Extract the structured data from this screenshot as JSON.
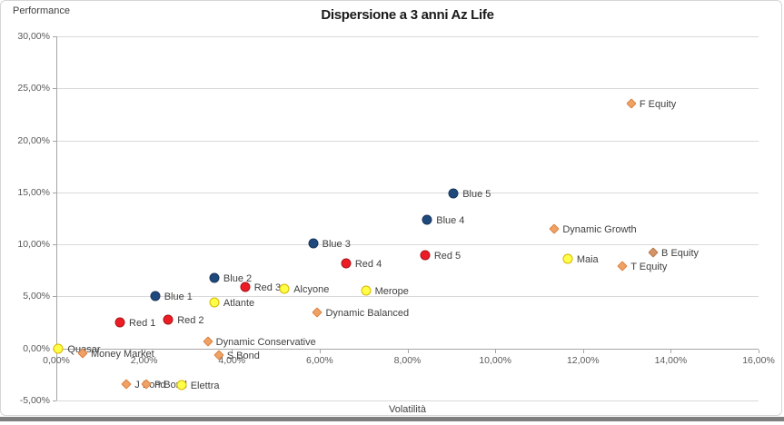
{
  "title": "Dispersione a 3 anni Az Life",
  "y_axis_title": "Performance",
  "x_axis_title": "Volatilità",
  "palette": {
    "blue": {
      "fill": "#1F497D",
      "border": "#17365D"
    },
    "red": {
      "fill": "#ED1C24",
      "border": "#A81419"
    },
    "yellow": {
      "fill": "#FFFF47",
      "border": "#D9B500"
    },
    "orange": {
      "fill": "#F0A265",
      "border": "#DB8244"
    },
    "tan": {
      "fill": "#D49465",
      "border": "#B87B4E"
    }
  },
  "chart_data": {
    "type": "scatter",
    "title": "Dispersione a 3 anni Az Life",
    "xlabel": "Volatilità",
    "ylabel": "Performance",
    "xlim": [
      0,
      16
    ],
    "ylim": [
      -5,
      30
    ],
    "grid": "horizontal-only",
    "legend": "none",
    "x_ticks": [
      {
        "value": 0,
        "label": "0,00%"
      },
      {
        "value": 2,
        "label": "2,00%"
      },
      {
        "value": 4,
        "label": "4,00%"
      },
      {
        "value": 6,
        "label": "6,00%"
      },
      {
        "value": 8,
        "label": "8,00%"
      },
      {
        "value": 10,
        "label": "10,00%"
      },
      {
        "value": 12,
        "label": "12,00%"
      },
      {
        "value": 14,
        "label": "14,00%"
      },
      {
        "value": 16,
        "label": "16,00%"
      }
    ],
    "y_ticks": [
      {
        "value": 30,
        "label": "30,00%"
      },
      {
        "value": 25,
        "label": "25,00%"
      },
      {
        "value": 20,
        "label": "20,00%"
      },
      {
        "value": 15,
        "label": "15,00%"
      },
      {
        "value": 10,
        "label": "10,00%"
      },
      {
        "value": 5,
        "label": "5,00%"
      },
      {
        "value": 0,
        "label": "0,00%"
      },
      {
        "value": -5,
        "label": "-5,00%"
      }
    ],
    "points": [
      {
        "name": "Quasar",
        "x": 0.05,
        "y": 0.0,
        "marker": "circle",
        "color": "yellow"
      },
      {
        "name": "Money Market",
        "x": 0.6,
        "y": -0.5,
        "marker": "diamond",
        "color": "orange"
      },
      {
        "name": "Red 1",
        "x": 1.45,
        "y": 2.5,
        "marker": "circle",
        "color": "red"
      },
      {
        "name": "J Bond",
        "x": 1.6,
        "y": -3.45,
        "marker": "diamond",
        "color": "orange"
      },
      {
        "name": "P Bond",
        "x": 2.05,
        "y": -3.45,
        "marker": "diamond",
        "color": "orange"
      },
      {
        "name": "Blue 1",
        "x": 2.25,
        "y": 5.0,
        "marker": "circle",
        "color": "blue"
      },
      {
        "name": "Red 2",
        "x": 2.55,
        "y": 2.8,
        "marker": "circle",
        "color": "red"
      },
      {
        "name": "Elettra",
        "x": 2.85,
        "y": -3.5,
        "marker": "circle",
        "color": "yellow"
      },
      {
        "name": "Dynamic Conservative",
        "x": 3.45,
        "y": 0.7,
        "marker": "diamond",
        "color": "orange"
      },
      {
        "name": "Blue 2",
        "x": 3.6,
        "y": 6.8,
        "marker": "circle",
        "color": "blue"
      },
      {
        "name": "Atlante",
        "x": 3.6,
        "y": 4.4,
        "marker": "circle",
        "color": "yellow"
      },
      {
        "name": "S Bond",
        "x": 3.7,
        "y": -0.65,
        "marker": "diamond",
        "color": "orange"
      },
      {
        "name": "Red 3",
        "x": 4.3,
        "y": 5.9,
        "marker": "circle",
        "color": "red"
      },
      {
        "name": "Alcyone",
        "x": 5.2,
        "y": 5.7,
        "marker": "circle",
        "color": "yellow"
      },
      {
        "name": "Blue 3",
        "x": 5.85,
        "y": 10.1,
        "marker": "circle",
        "color": "blue"
      },
      {
        "name": "Dynamic Balanced",
        "x": 5.95,
        "y": 3.45,
        "marker": "diamond",
        "color": "orange"
      },
      {
        "name": "Red 4",
        "x": 6.6,
        "y": 8.2,
        "marker": "circle",
        "color": "red"
      },
      {
        "name": "Merope",
        "x": 7.05,
        "y": 5.6,
        "marker": "circle",
        "color": "yellow"
      },
      {
        "name": "Red 5",
        "x": 8.4,
        "y": 9.0,
        "marker": "circle",
        "color": "red"
      },
      {
        "name": "Blue 4",
        "x": 8.45,
        "y": 12.4,
        "marker": "circle",
        "color": "blue"
      },
      {
        "name": "Blue 5",
        "x": 9.05,
        "y": 14.9,
        "marker": "circle",
        "color": "blue"
      },
      {
        "name": "Dynamic Growth",
        "x": 11.35,
        "y": 11.5,
        "marker": "diamond",
        "color": "orange"
      },
      {
        "name": "Maia",
        "x": 11.65,
        "y": 8.6,
        "marker": "circle",
        "color": "yellow"
      },
      {
        "name": "T Equity",
        "x": 12.9,
        "y": 7.9,
        "marker": "diamond",
        "color": "orange"
      },
      {
        "name": "F Equity",
        "x": 13.1,
        "y": 23.5,
        "marker": "diamond",
        "color": "orange"
      },
      {
        "name": "B Equity",
        "x": 13.6,
        "y": 9.2,
        "marker": "diamond",
        "color": "tan"
      }
    ]
  }
}
